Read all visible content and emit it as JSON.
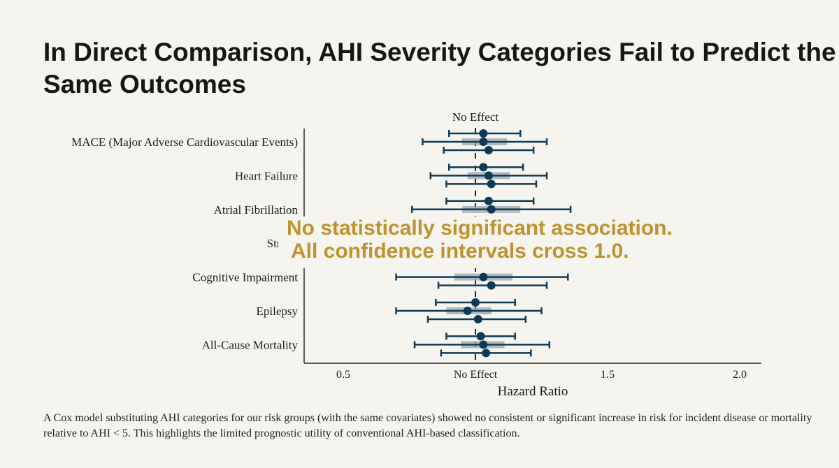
{
  "title": "In Direct Comparison, AHI Severity Categories Fail to Predict the Same Outcomes",
  "overlay": {
    "line1": "No statistically significant association.",
    "line2": "All confidence intervals cross 1.0.",
    "color": "#c0922e"
  },
  "footer": "A Cox model substituting AHI categories for our risk groups (with the same covariates) showed no consistent or significant increase in risk for incident disease or mortality relative to AHI < 5. This highlights the limited prognostic utility of conventional AHI-based classification.",
  "chart_data": {
    "type": "forest",
    "reference_label": "No Effect",
    "reference_value": 1.0,
    "xlabel": "Hazard Ratio",
    "xlim": [
      0.38,
      2.08
    ],
    "xticks": [
      {
        "value": 0.5,
        "label": "0.5"
      },
      {
        "value": 1.0,
        "label": "No Effect"
      },
      {
        "value": 1.5,
        "label": "1.5"
      },
      {
        "value": 2.0,
        "label": "2.0"
      }
    ],
    "colors": {
      "point": "#0f3a55",
      "band": "#9aa5ad",
      "axis": "#2a2a2a"
    },
    "outcomes": [
      {
        "label": "MACE (Major Adverse Cardiovascular Events)",
        "rows": [
          {
            "hr": 1.03,
            "lo": 0.9,
            "hi": 1.17
          },
          {
            "hr": 1.03,
            "lo": 0.8,
            "hi": 1.27,
            "band": [
              0.95,
              1.12
            ]
          },
          {
            "hr": 1.05,
            "lo": 0.88,
            "hi": 1.22
          }
        ]
      },
      {
        "label": "Heart Failure",
        "rows": [
          {
            "hr": 1.03,
            "lo": 0.9,
            "hi": 1.18
          },
          {
            "hr": 1.05,
            "lo": 0.83,
            "hi": 1.27,
            "band": [
              0.97,
              1.13
            ]
          },
          {
            "hr": 1.06,
            "lo": 0.89,
            "hi": 1.23
          }
        ]
      },
      {
        "label": "Atrial Fibrillation",
        "rows": [
          {
            "hr": 1.05,
            "lo": 0.89,
            "hi": 1.22
          },
          {
            "hr": 1.06,
            "lo": 0.76,
            "hi": 1.36,
            "band": [
              0.95,
              1.17
            ]
          },
          null
        ]
      },
      {
        "label": "Stroke",
        "rows": [
          null,
          null,
          null
        ]
      },
      {
        "label": "Cognitive Impairment",
        "rows": [
          null,
          {
            "hr": 1.03,
            "lo": 0.7,
            "hi": 1.35,
            "band": [
              0.92,
              1.14
            ]
          },
          {
            "hr": 1.06,
            "lo": 0.86,
            "hi": 1.27
          }
        ]
      },
      {
        "label": "Epilepsy",
        "rows": [
          {
            "hr": 1.0,
            "lo": 0.85,
            "hi": 1.15
          },
          {
            "hr": 0.97,
            "lo": 0.7,
            "hi": 1.25,
            "band": [
              0.89,
              1.06
            ]
          },
          {
            "hr": 1.01,
            "lo": 0.82,
            "hi": 1.19
          }
        ]
      },
      {
        "label": "All-Cause Mortality",
        "rows": [
          {
            "hr": 1.02,
            "lo": 0.89,
            "hi": 1.15
          },
          {
            "hr": 1.03,
            "lo": 0.77,
            "hi": 1.28,
            "band": [
              0.945,
              1.11
            ]
          },
          {
            "hr": 1.04,
            "lo": 0.87,
            "hi": 1.21
          }
        ]
      }
    ]
  }
}
